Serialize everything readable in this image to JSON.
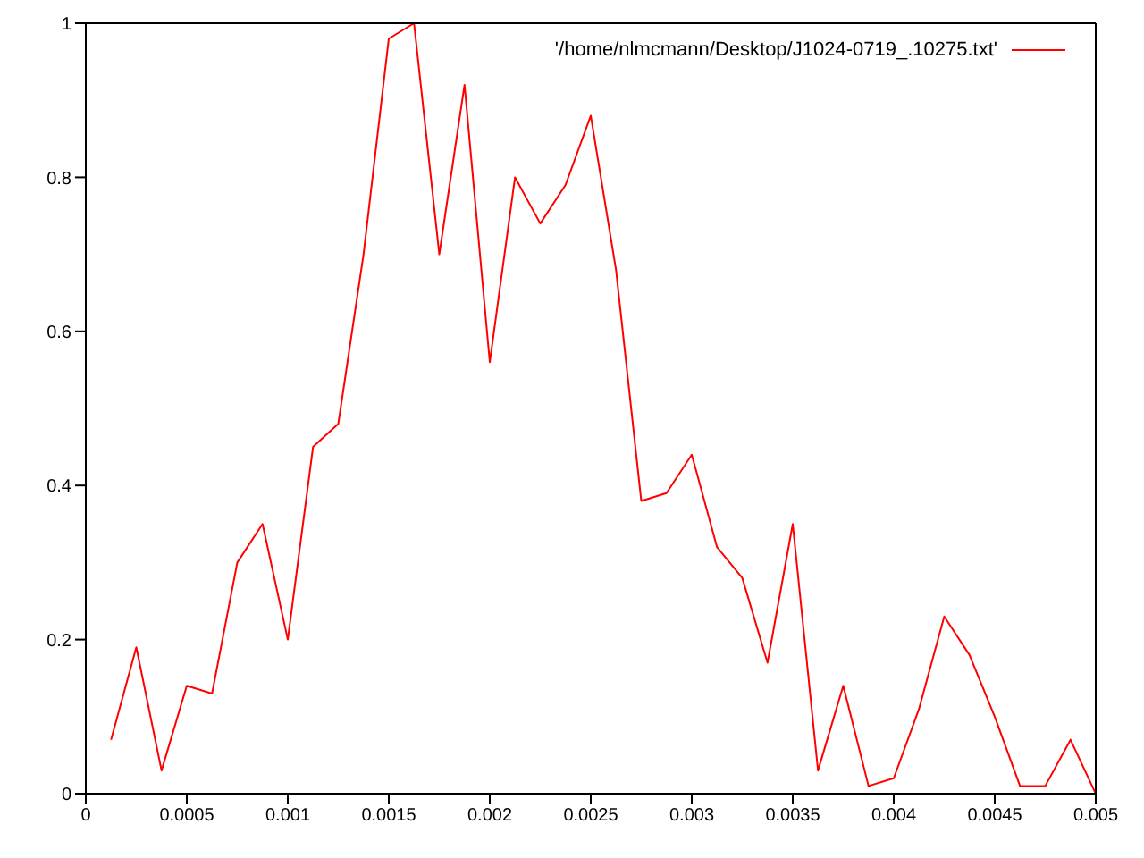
{
  "chart_data": {
    "type": "line",
    "x": [
      0.000125,
      0.00025,
      0.000375,
      0.0005,
      0.000625,
      0.00075,
      0.000875,
      0.001,
      0.001125,
      0.00125,
      0.001375,
      0.0015,
      0.001625,
      0.00175,
      0.001875,
      0.002,
      0.002125,
      0.00225,
      0.002375,
      0.0025,
      0.002625,
      0.00275,
      0.002875,
      0.003,
      0.003125,
      0.00325,
      0.003375,
      0.0035,
      0.003625,
      0.00375,
      0.003875,
      0.004,
      0.004125,
      0.00425,
      0.004375,
      0.0045,
      0.004625,
      0.00475,
      0.004875,
      0.005
    ],
    "series": [
      {
        "name": "'/home/nlmcmann/Desktop/J1024-0719_.10275.txt'",
        "color": "#ff0000",
        "values": [
          0.07,
          0.19,
          0.03,
          0.14,
          0.13,
          0.3,
          0.35,
          0.2,
          0.45,
          0.48,
          0.7,
          0.98,
          1.0,
          0.7,
          0.92,
          0.56,
          0.8,
          0.74,
          0.79,
          0.88,
          0.68,
          0.38,
          0.39,
          0.44,
          0.32,
          0.28,
          0.17,
          0.35,
          0.03,
          0.14,
          0.01,
          0.02,
          0.11,
          0.23,
          0.18,
          0.1,
          0.01,
          0.01,
          0.07,
          0.0
        ]
      }
    ],
    "xlim": [
      0,
      0.005
    ],
    "xticks": [
      0,
      0.0005,
      0.001,
      0.0015,
      0.002,
      0.0025,
      0.003,
      0.0035,
      0.004,
      0.0045,
      0.005
    ],
    "ylim": [
      0,
      1
    ],
    "yticks": [
      0,
      0.2,
      0.4,
      0.6,
      0.8,
      1
    ],
    "grid": false,
    "legend": "top right",
    "marker": "none",
    "line_style": "solid"
  }
}
